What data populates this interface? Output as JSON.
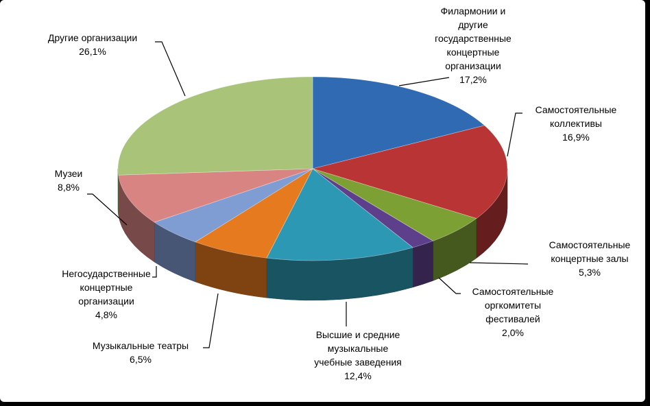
{
  "chart_data": {
    "type": "pie3d",
    "categories": [
      "Филармонии и\nдругие\nгосударственные\nконцертные\nорганизации",
      "Самостоятельные\nколлективы",
      "Самостоятельные\nконцертные залы",
      "Самостоятельные\nоргкомитеты\nфестивалей",
      "Высшие и средние\nмузыкальные\nучебные заведения",
      "Музыкальные театры",
      "Негосударственные\nконцертные\nорганизации",
      "Музеи",
      "Другие организации"
    ],
    "values": [
      17.2,
      16.9,
      5.3,
      2.0,
      12.4,
      6.5,
      4.8,
      8.8,
      26.1
    ],
    "value_labels": [
      "17,2%",
      "16,9%",
      "5,3%",
      "2,0%",
      "12,4%",
      "6,5%",
      "4,8%",
      "8,8%",
      "26,1%"
    ],
    "colors": [
      "#2f6ab2",
      "#b93434",
      "#7da035",
      "#5e3f8c",
      "#2d98b3",
      "#e57a1e",
      "#7f9dd2",
      "#d88483",
      "#a9c479"
    ]
  }
}
